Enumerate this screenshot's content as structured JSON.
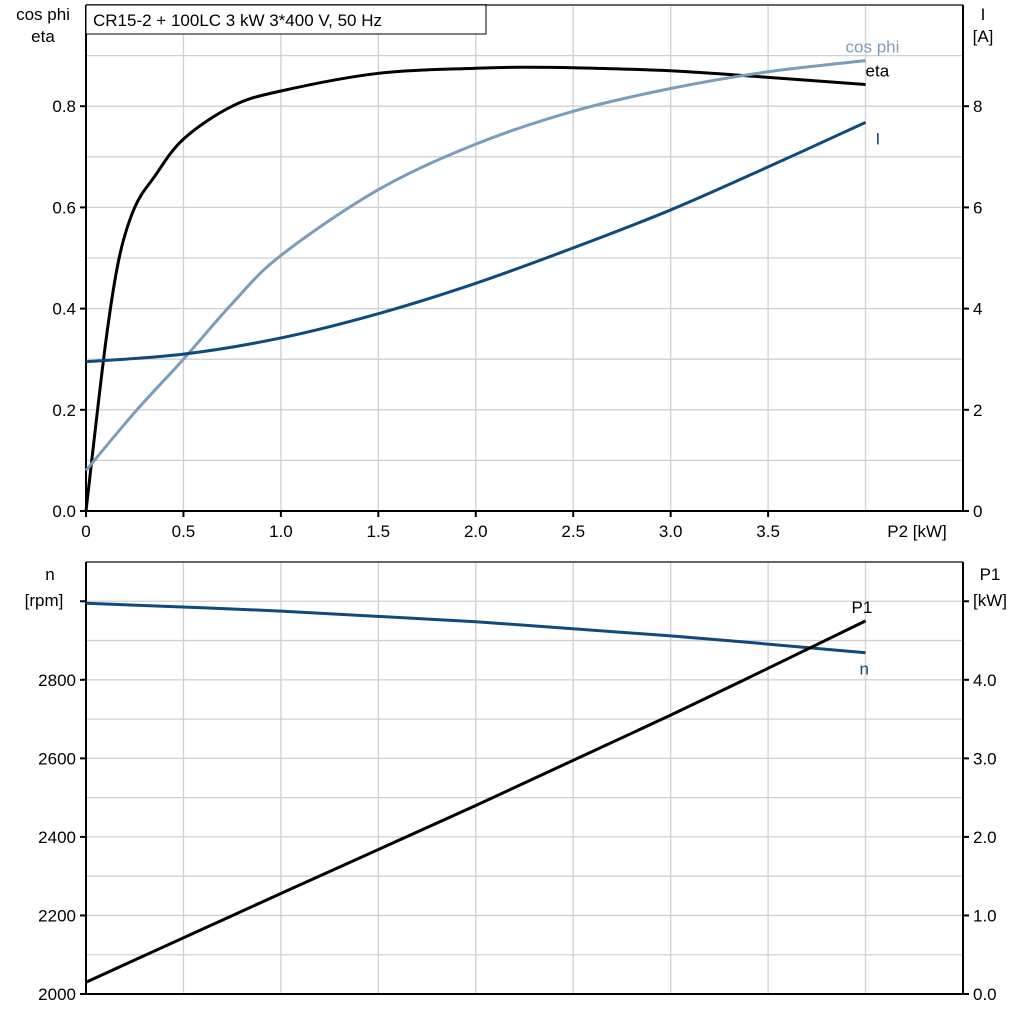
{
  "chart_data": [
    {
      "type": "line",
      "title": "CR15-2 + 100LC   3 kW   3*400 V, 50 Hz",
      "xlabel": "P2 [kW]",
      "ylabel_left": [
        "cos phi",
        "eta"
      ],
      "ylabel_right": [
        "I",
        "[A]"
      ],
      "xlim": [
        0,
        4.5
      ],
      "ylim_left": [
        0,
        1.0
      ],
      "ylim_right": [
        0,
        10
      ],
      "x_ticks": [
        "0",
        "0.5",
        "1.0",
        "1.5",
        "2.0",
        "2.5",
        "3.0",
        "3.5"
      ],
      "y_left_ticks": [
        "0.0",
        "0.2",
        "0.4",
        "0.6",
        "0.8"
      ],
      "y_right_ticks": [
        "0",
        "2",
        "4",
        "6",
        "8"
      ],
      "grid": true,
      "series": [
        {
          "name": "eta",
          "axis": "left",
          "color": "#000000",
          "x": [
            0,
            0.1,
            0.17,
            0.25,
            0.35,
            0.5,
            0.75,
            1.0,
            1.5,
            2.0,
            2.25,
            2.5,
            3.0,
            3.5,
            4.0
          ],
          "y": [
            0,
            0.33,
            0.5,
            0.6,
            0.66,
            0.735,
            0.8,
            0.83,
            0.865,
            0.875,
            0.877,
            0.876,
            0.87,
            0.857,
            0.843
          ]
        },
        {
          "name": "cos phi",
          "axis": "left",
          "color": "#7a9dbd",
          "x": [
            0,
            0.25,
            0.5,
            0.75,
            1.0,
            1.5,
            2.0,
            2.5,
            3.0,
            3.5,
            4.0
          ],
          "y": [
            0.08,
            0.195,
            0.3,
            0.41,
            0.505,
            0.635,
            0.725,
            0.79,
            0.835,
            0.868,
            0.89
          ]
        },
        {
          "name": "I",
          "axis": "right",
          "color": "#0e4a80",
          "x": [
            0,
            0.5,
            1.0,
            1.5,
            2.0,
            2.5,
            3.0,
            3.5,
            4.0
          ],
          "y": [
            2.95,
            3.1,
            3.42,
            3.9,
            4.5,
            5.2,
            5.95,
            6.8,
            7.68
          ]
        }
      ]
    },
    {
      "type": "line",
      "xlim": [
        0,
        4.5
      ],
      "ylabel_left": [
        "n",
        "[rpm]"
      ],
      "ylabel_right": [
        "P1",
        "[kW]"
      ],
      "ylim_left": [
        2000,
        3100
      ],
      "ylim_right": [
        0,
        5.5
      ],
      "y_left_ticks": [
        "2000",
        "2200",
        "2400",
        "2600",
        "2800"
      ],
      "y_right_ticks": [
        "0.0",
        "1.0",
        "2.0",
        "3.0",
        "4.0"
      ],
      "grid": true,
      "series": [
        {
          "name": "n",
          "axis": "left",
          "color": "#0e4a80",
          "x": [
            0,
            1,
            2,
            3,
            4
          ],
          "y": [
            2995,
            2975,
            2948,
            2912,
            2869
          ]
        },
        {
          "name": "P1",
          "axis": "right",
          "color": "#000000",
          "x": [
            0,
            1,
            2,
            3,
            4
          ],
          "y": [
            0.15,
            1.28,
            2.4,
            3.55,
            4.75
          ]
        }
      ]
    }
  ]
}
